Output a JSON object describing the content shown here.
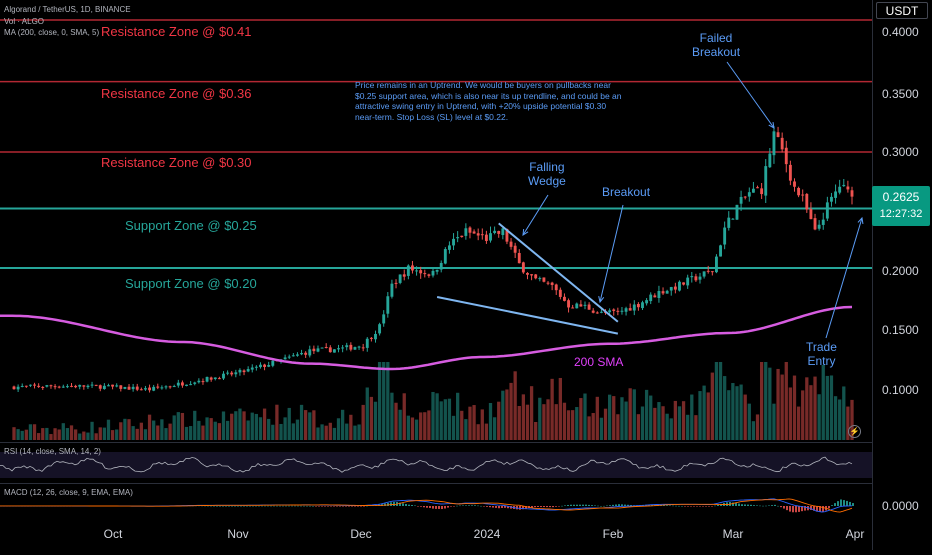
{
  "header": {
    "symbol_line": "Algorand / TetherUS, 1D, BINANCE",
    "volume_legend": "Vol · ALGO",
    "ma_legend": "MA (200, close, 0, SMA, 5)"
  },
  "axis": {
    "currency": "USDT",
    "price_ticks": [
      "0.4000",
      "0.3500",
      "0.3000",
      "0.2000",
      "0.1500",
      "0.1000"
    ],
    "macd_tick": "0.0000",
    "time_ticks": [
      "Oct",
      "Nov",
      "Dec",
      "2024",
      "Feb",
      "Mar",
      "Apr"
    ]
  },
  "last_price": {
    "price": "0.2625",
    "countdown": "12:27:32"
  },
  "zones": {
    "resistance": [
      "Resistance Zone @ $0.41",
      "Resistance Zone @ $0.36",
      "Resistance Zone @ $0.30"
    ],
    "support": [
      "Support Zone @ $0.25",
      "Support Zone @ $0.20"
    ]
  },
  "annotations": {
    "note": "Price remains in an Uptrend. We would be buyers on pullbacks near $0.25 support area, which is also near its up trendline, and could be an attractive swing entry in Uptrend, with +20% upside potential $0.30 near-term. Stop Loss (SL) level at $0.22.",
    "falling_wedge": [
      "Falling",
      "Wedge"
    ],
    "breakout": "Breakout",
    "failed_breakout": [
      "Failed",
      "Breakout"
    ],
    "trade_entry": [
      "Trade",
      "Entry"
    ],
    "sma_label": "200 SMA"
  },
  "panes": {
    "rsi_legend": "RSI (14, close, SMA, 14, 2)",
    "macd_legend": "MACD (12, 26, close, 9, EMA, EMA)"
  },
  "colors": {
    "up": "#26a69a",
    "down": "#ef5350",
    "resistance": "#b22833",
    "support": "#26a69a",
    "sma": "#d65ce0",
    "annotation": "#5b9cf6",
    "badge": "#089981"
  },
  "chart_data": {
    "type": "candlestick",
    "title": "Algorand / TetherUS, 1D, BINANCE",
    "x_range": [
      "2023-09-09",
      "2024-03-31"
    ],
    "y_range": [
      0.065,
      0.42
    ],
    "y_ticks": [
      0.4,
      0.35,
      0.3,
      0.2,
      0.15,
      0.1
    ],
    "grid": false,
    "horizontal_levels": [
      {
        "name": "Resistance Zone @ $0.41",
        "value": 0.41
      },
      {
        "name": "Resistance Zone @ $0.36",
        "value": 0.36
      },
      {
        "name": "Resistance Zone @ $0.30",
        "value": 0.3
      },
      {
        "name": "Support Zone @ $0.25",
        "value": 0.2525
      },
      {
        "name": "Support Zone @ $0.20",
        "value": 0.2025
      }
    ],
    "close_path": [
      {
        "date": "2023-09-09",
        "close": 0.1025
      },
      {
        "date": "2023-09-20",
        "close": 0.1035
      },
      {
        "date": "2023-10-01",
        "close": 0.1028
      },
      {
        "date": "2023-10-12",
        "close": 0.1005
      },
      {
        "date": "2023-10-20",
        "close": 0.1055
      },
      {
        "date": "2023-10-28",
        "close": 0.1105
      },
      {
        "date": "2023-11-04",
        "close": 0.1155
      },
      {
        "date": "2023-11-12",
        "close": 0.1235
      },
      {
        "date": "2023-11-20",
        "close": 0.1325
      },
      {
        "date": "2023-11-28",
        "close": 0.1345
      },
      {
        "date": "2023-12-03",
        "close": 0.1375
      },
      {
        "date": "2023-12-07",
        "close": 0.153
      },
      {
        "date": "2023-12-10",
        "close": 0.188
      },
      {
        "date": "2023-12-14",
        "close": 0.202
      },
      {
        "date": "2023-12-20",
        "close": 0.1975
      },
      {
        "date": "2023-12-24",
        "close": 0.222
      },
      {
        "date": "2023-12-28",
        "close": 0.233
      },
      {
        "date": "2024-01-02",
        "close": 0.2275
      },
      {
        "date": "2024-01-06",
        "close": 0.233
      },
      {
        "date": "2024-01-10",
        "close": 0.2055
      },
      {
        "date": "2024-01-14",
        "close": 0.192
      },
      {
        "date": "2024-01-18",
        "close": 0.187
      },
      {
        "date": "2024-01-22",
        "close": 0.171
      },
      {
        "date": "2024-01-26",
        "close": 0.17
      },
      {
        "date": "2024-01-30",
        "close": 0.164
      },
      {
        "date": "2024-02-03",
        "close": 0.165
      },
      {
        "date": "2024-02-08",
        "close": 0.172
      },
      {
        "date": "2024-02-13",
        "close": 0.182
      },
      {
        "date": "2024-02-18",
        "close": 0.188
      },
      {
        "date": "2024-02-22",
        "close": 0.1945
      },
      {
        "date": "2024-02-26",
        "close": 0.2
      },
      {
        "date": "2024-02-29",
        "close": 0.236
      },
      {
        "date": "2024-03-03",
        "close": 0.254
      },
      {
        "date": "2024-03-06",
        "close": 0.266
      },
      {
        "date": "2024-03-09",
        "close": 0.269
      },
      {
        "date": "2024-03-12",
        "close": 0.316
      },
      {
        "date": "2024-03-14",
        "close": 0.301
      },
      {
        "date": "2024-03-17",
        "close": 0.27
      },
      {
        "date": "2024-03-19",
        "close": 0.26
      },
      {
        "date": "2024-03-22",
        "close": 0.232
      },
      {
        "date": "2024-03-25",
        "close": 0.254
      },
      {
        "date": "2024-03-28",
        "close": 0.272
      },
      {
        "date": "2024-03-31",
        "close": 0.2625
      }
    ],
    "sma_200": [
      {
        "date": "2023-09-09",
        "value": 0.162
      },
      {
        "date": "2023-10-20",
        "value": 0.14
      },
      {
        "date": "2023-11-20",
        "value": 0.122
      },
      {
        "date": "2023-12-10",
        "value": 0.1175
      },
      {
        "date": "2024-01-01",
        "value": 0.1275
      },
      {
        "date": "2024-02-01",
        "value": 0.1385
      },
      {
        "date": "2024-03-01",
        "value": 0.1475
      },
      {
        "date": "2024-03-31",
        "value": 0.1695
      }
    ],
    "trendlines": [
      {
        "name": "wedge-upper",
        "points": [
          {
            "date": "2024-01-05",
            "value": 0.24
          },
          {
            "date": "2024-02-03",
            "value": 0.157
          }
        ]
      },
      {
        "name": "wedge-lower",
        "points": [
          {
            "date": "2023-12-21",
            "value": 0.178
          },
          {
            "date": "2024-02-03",
            "value": 0.147
          }
        ]
      }
    ],
    "last_price": 0.2625
  }
}
